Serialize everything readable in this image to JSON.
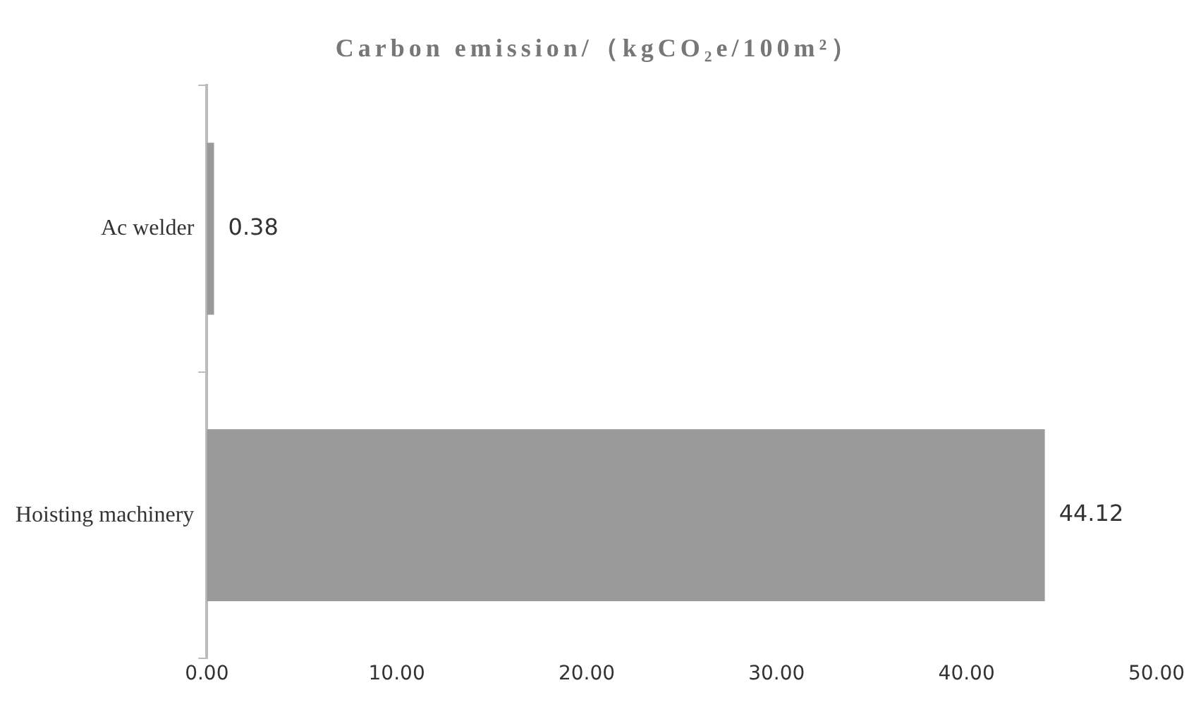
{
  "chart_data": {
    "type": "bar",
    "orientation": "horizontal",
    "title": "Carbon emission/（kgCO₂e/100m²）",
    "categories": [
      "Ac welder",
      "Hoisting machinery"
    ],
    "values": [
      0.38,
      44.12
    ],
    "color": "#9a9a9a",
    "xlim": [
      0,
      50
    ],
    "xticks": [
      {
        "value": 0,
        "label": "0.00"
      },
      {
        "value": 10,
        "label": "10.00"
      },
      {
        "value": 20,
        "label": "20.00"
      },
      {
        "value": 30,
        "label": "30.00"
      },
      {
        "value": 40,
        "label": "40.00"
      },
      {
        "value": 50,
        "label": "50.00"
      }
    ],
    "data_labels": true,
    "grid": false,
    "legend": false
  }
}
